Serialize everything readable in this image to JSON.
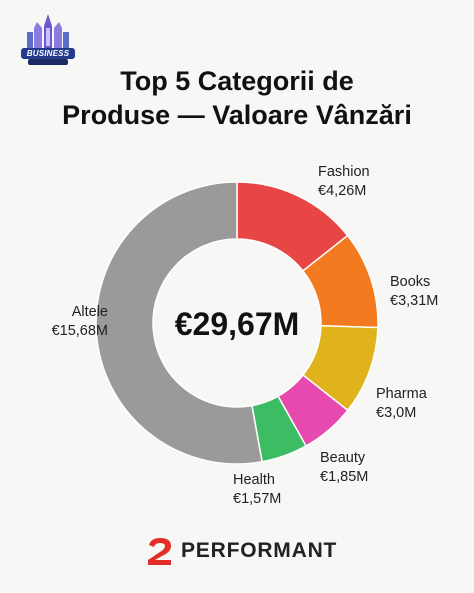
{
  "header": {
    "logo_label": "BUSINESS",
    "title_line1": "Top 5 Categorii de",
    "title_line2": "Produse — Valoare Vânzări"
  },
  "chart_data": {
    "type": "pie",
    "variant": "donut",
    "title": "Top 5 Categorii de Produse — Valoare Vânzări",
    "center_label": "€29,67M",
    "total": 29.67,
    "unit": "€M",
    "slices": [
      {
        "name": "Fashion",
        "value": 4.26,
        "label": "€4,26M",
        "color": "#e84545"
      },
      {
        "name": "Books",
        "value": 3.31,
        "label": "€3,31M",
        "color": "#f47a20"
      },
      {
        "name": "Pharma",
        "value": 3.0,
        "label": "€3,0M",
        "color": "#e0b21b"
      },
      {
        "name": "Beauty",
        "value": 1.85,
        "label": "€1,85M",
        "color": "#e74aae"
      },
      {
        "name": "Health",
        "value": 1.57,
        "label": "€1,57M",
        "color": "#3cbd63"
      },
      {
        "name": "Altele",
        "value": 15.68,
        "label": "€15,68M",
        "color": "#9a9a9a"
      }
    ]
  },
  "footer": {
    "brand": "PERFORMANT",
    "accent_color": "#e52d27"
  }
}
